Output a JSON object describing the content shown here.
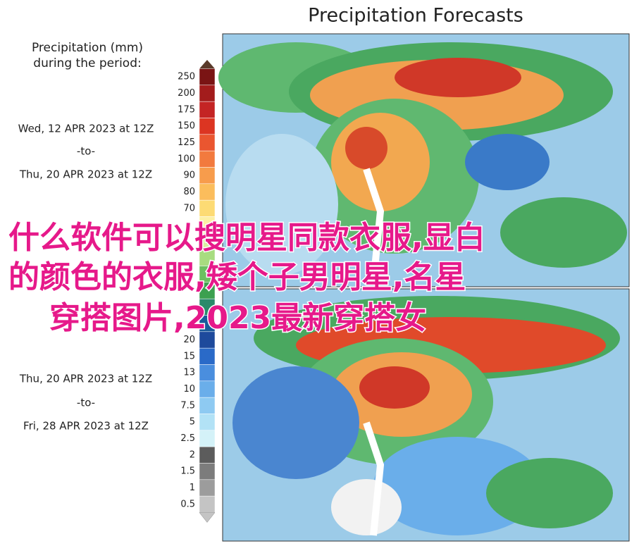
{
  "title": "Precipitation Forecasts",
  "legend": {
    "title_lines": [
      "Precipitation (mm)",
      "during the period:"
    ],
    "labels": [
      "250",
      "200",
      "175",
      "150",
      "125",
      "100",
      "90",
      "80",
      "70",
      null,
      null,
      null,
      null,
      null,
      null,
      null,
      "20",
      "15",
      "13",
      "10",
      "7.5",
      "5",
      "2.5",
      "2",
      "1.5",
      "1",
      "0.5"
    ],
    "colors": [
      "#7a1414",
      "#a31c1c",
      "#c42424",
      "#dc3522",
      "#ea5630",
      "#f27a3e",
      "#f79c4c",
      "#fbbd5c",
      "#fddb74",
      "#fdf0a4",
      "#d8f0a0",
      "#a8dc80",
      "#6cc060",
      "#3ca050",
      "#2a8a6a",
      "#1a5a9a",
      "#1e4a9c",
      "#2a6ac8",
      "#4a8ede",
      "#6aaeea",
      "#8ecaf2",
      "#b2e2f6",
      "#d4f2f8",
      "#5c5c5c",
      "#7c7c7c",
      "#9c9c9c",
      "#c4c4c4"
    ]
  },
  "periods": [
    {
      "start": "Wed, 12 APR 2023 at 12Z",
      "to": "-to-",
      "end": "Thu, 20 APR 2023 at 12Z"
    },
    {
      "start": "Thu, 20 APR 2023 at 12Z",
      "to": "-to-",
      "end": "Fri, 28 APR 2023 at 12Z"
    }
  ],
  "overlay_lines": [
    "什么软件可以搜明星同款衣服,显白",
    "的颜色的衣服,矮个子男明星,名星",
    "穿搭图片,2023最新穿搭女"
  ]
}
